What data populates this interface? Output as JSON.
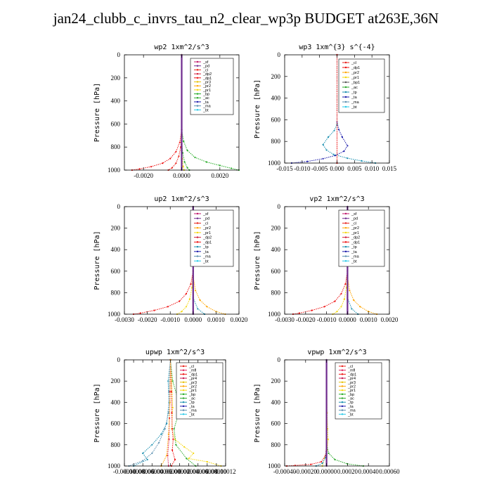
{
  "figure_title": "jan24_clubb_c_invrs_tau_n2_clear_wp3p  BUDGET at263E,36N",
  "colors": {
    "_sf": "#c0176c",
    "_pd": "#6e2a8e",
    "_cl": "#e8231c",
    "_dp2": "#d31f3a",
    "_dp1": "#ee1111",
    "_pr3": "#e6c000",
    "_pr2": "#ffa500",
    "_pr1": "#f5d60a",
    "_bp": "#22aa22",
    "_ac": "#2aa82a",
    "_tp": "#1a8fb0",
    "_ta": "#1a1aaa",
    "_ma": "#5a8fb0",
    "_bt": "#22c8e8",
    "_mfl": "#e0205a",
    "_pr4": "#c81450"
  },
  "chart_data": [
    {
      "type": "line",
      "title": "wp2   1xm^2/s^3",
      "ylabel": "Pressure  [hPa]",
      "xlim": [
        -0.003,
        0.003
      ],
      "ylim": [
        1000,
        0
      ],
      "xticks": [
        "-0.0020",
        "0.0000",
        "0.0020"
      ],
      "xtick_values": [
        -0.002,
        0,
        0.002
      ],
      "yticks": [
        "0",
        "200",
        "400",
        "600",
        "800",
        "1000"
      ],
      "legend": [
        "_sf",
        "_pd",
        "_cl",
        "_dp2",
        "_dp1",
        "_pr3",
        "_pr2",
        "_pr1",
        "_bp",
        "_ac",
        "_ta",
        "_ma",
        "_bt"
      ],
      "series": [
        {
          "name": "_bp",
          "x": [
            0,
            0,
            0.0001,
            0.0003,
            0.0007,
            0.0013,
            0.002,
            0.0026,
            0.003
          ],
          "y": [
            0,
            650,
            750,
            830,
            890,
            930,
            960,
            985,
            1000
          ]
        },
        {
          "name": "_dp1",
          "x": [
            0,
            0,
            -0.0001,
            -0.0003,
            -0.0006,
            -0.001,
            -0.0016,
            -0.0022,
            -0.0026
          ],
          "y": [
            0,
            650,
            760,
            840,
            900,
            940,
            970,
            990,
            1000
          ]
        },
        {
          "name": "_cl",
          "x": [
            0,
            0,
            -5e-05,
            -0.00015,
            -0.0003,
            -0.0005,
            -0.0007
          ],
          "y": [
            0,
            700,
            800,
            880,
            940,
            980,
            1000
          ]
        },
        {
          "name": "_ac",
          "x": [
            0,
            0,
            5e-05,
            0.00015,
            0.0003,
            0.0004
          ],
          "y": [
            0,
            750,
            850,
            930,
            980,
            1000
          ]
        },
        {
          "name": "_pr1",
          "x": [
            0,
            0,
            3e-05,
            8e-05,
            0.00012
          ],
          "y": [
            0,
            800,
            900,
            970,
            1000
          ]
        },
        {
          "name": "_pd",
          "x": [
            0,
            0
          ],
          "y": [
            0,
            1000
          ]
        }
      ]
    },
    {
      "type": "line",
      "title": "wp3   1xm^{3} s^{-4}",
      "ylabel": "Pressure  [hPa]",
      "xlim": [
        -0.015,
        0.015
      ],
      "ylim": [
        1000,
        0
      ],
      "xticks": [
        "-0.015",
        "-0.010",
        "-0.005",
        "0.000",
        "0.005",
        "0.010",
        "0.015"
      ],
      "xtick_values": [
        -0.015,
        -0.01,
        -0.005,
        0,
        0.005,
        0.01,
        0.015
      ],
      "yticks": [
        "0",
        "200",
        "400",
        "600",
        "800",
        "1000"
      ],
      "legend": [
        "_cl",
        "_dp1",
        "_pr2",
        "_pr1",
        "_bp1",
        "_ac",
        "_tp",
        "_ta",
        "_ma",
        "_bt"
      ],
      "series": [
        {
          "name": "_ta",
          "x": [
            0,
            0,
            0.0005,
            0.0015,
            0.003,
            0.002,
            -0.0005,
            -0.004,
            -0.0085,
            -0.013
          ],
          "y": [
            0,
            620,
            690,
            760,
            840,
            890,
            930,
            960,
            985,
            1000
          ]
        },
        {
          "name": "_tp",
          "x": [
            0,
            0,
            -0.0008,
            -0.0025,
            -0.004,
            -0.003,
            -0.001,
            0.003,
            0.007,
            0.011
          ],
          "y": [
            0,
            640,
            700,
            760,
            830,
            880,
            920,
            955,
            980,
            1000
          ]
        },
        {
          "name": "_cl",
          "x": [
            0,
            0
          ],
          "y": [
            0,
            1000
          ]
        },
        {
          "name": "_dp1",
          "x": [
            0,
            0
          ],
          "y": [
            0,
            1000
          ]
        }
      ]
    },
    {
      "type": "line",
      "title": "up2   1xm^2/s^3",
      "ylabel": "Pressure  [hPa]",
      "xlim": [
        -0.003,
        0.002
      ],
      "ylim": [
        1000,
        0
      ],
      "xticks": [
        "-0.0030",
        "-0.0020",
        "-0.0010",
        "0.0000",
        "0.0010",
        "0.0020"
      ],
      "xtick_values": [
        -0.003,
        -0.002,
        -0.001,
        0,
        0.001,
        0.002
      ],
      "yticks": [
        "0",
        "200",
        "400",
        "600",
        "800",
        "1000"
      ],
      "legend": [
        "_sf",
        "_pd",
        "_cl",
        "_pr2",
        "_pr1",
        "_dp2",
        "_dp1",
        "_tp",
        "_ta",
        "_ma",
        "_bt"
      ],
      "series": [
        {
          "name": "_dp1",
          "x": [
            0,
            0,
            -0.0001,
            -0.0003,
            -0.0006,
            -0.0011,
            -0.0017,
            -0.0023,
            -0.0026
          ],
          "y": [
            0,
            600,
            720,
            810,
            880,
            930,
            965,
            990,
            1000
          ]
        },
        {
          "name": "_pr1",
          "x": [
            0,
            0,
            -5e-05,
            -0.00015,
            -0.0003,
            -0.0005,
            -0.0007
          ],
          "y": [
            0,
            600,
            750,
            860,
            930,
            975,
            1000
          ]
        },
        {
          "name": "_pr2",
          "x": [
            0,
            0,
            0.0001,
            0.0003,
            0.0006,
            0.001,
            0.0014
          ],
          "y": [
            0,
            650,
            780,
            870,
            930,
            975,
            1000
          ]
        },
        {
          "name": "_tp",
          "x": [
            0,
            0,
            0.0002,
            0.0005
          ],
          "y": [
            0,
            850,
            950,
            1000
          ]
        },
        {
          "name": "_pd",
          "x": [
            0,
            0
          ],
          "y": [
            0,
            1000
          ]
        }
      ]
    },
    {
      "type": "line",
      "title": "vp2   1xm^2/s^3",
      "ylabel": "Pressure  [hPa]",
      "xlim": [
        -0.003,
        0.002
      ],
      "ylim": [
        1000,
        0
      ],
      "xticks": [
        "-0.0030",
        "-0.0020",
        "-0.0010",
        "0.0000",
        "0.0010",
        "0.0020"
      ],
      "xtick_values": [
        -0.003,
        -0.002,
        -0.001,
        0,
        0.001,
        0.002
      ],
      "yticks": [
        "0",
        "200",
        "400",
        "600",
        "800",
        "1000"
      ],
      "legend": [
        "_sf",
        "_pd",
        "_cl",
        "_pr2",
        "_pr1",
        "_dp2",
        "_dp1",
        "_tp",
        "_ta",
        "_ma",
        "_bt"
      ],
      "series": [
        {
          "name": "_dp1",
          "x": [
            0,
            0,
            -0.0001,
            -0.0003,
            -0.0006,
            -0.0011,
            -0.0017,
            -0.0023,
            -0.0026
          ],
          "y": [
            0,
            600,
            720,
            810,
            880,
            930,
            965,
            990,
            1000
          ]
        },
        {
          "name": "_pr1",
          "x": [
            0,
            0,
            -5e-05,
            -0.00015,
            -0.0003,
            -0.0005,
            -0.0007
          ],
          "y": [
            0,
            600,
            750,
            860,
            930,
            975,
            1000
          ]
        },
        {
          "name": "_pr2",
          "x": [
            0,
            0,
            0.0001,
            0.0003,
            0.0006,
            0.001,
            0.0014
          ],
          "y": [
            0,
            650,
            780,
            870,
            930,
            975,
            1000
          ]
        },
        {
          "name": "_tp",
          "x": [
            0,
            0,
            0.0002,
            0.0005
          ],
          "y": [
            0,
            850,
            950,
            1000
          ]
        },
        {
          "name": "_pd",
          "x": [
            0,
            0
          ],
          "y": [
            0,
            1000
          ]
        }
      ]
    },
    {
      "type": "line",
      "title": "upwp   1xm^2/s^3",
      "ylabel": "Pressure  [hPa]",
      "xlim": [
        -0.0001,
        0.00012
      ],
      "ylim": [
        1000,
        0
      ],
      "xticks": [
        "-0.00010",
        "-0.00008",
        "-0.00006",
        "-0.00004",
        "-0.00002",
        "0.00000",
        "0.00002",
        "0.00004",
        "0.00006",
        "0.00008",
        "0.00010",
        "0.00012"
      ],
      "xtick_values": [
        -0.0001,
        -8e-05,
        -6e-05,
        -4e-05,
        -2e-05,
        0,
        2e-05,
        4e-05,
        6e-05,
        8e-05,
        0.0001,
        0.00012
      ],
      "yticks": [
        "0",
        "200",
        "400",
        "600",
        "800",
        "1000"
      ],
      "legend": [
        "_cl",
        "_mfl",
        "_dp1",
        "_pr4",
        "_pr3",
        "_pr2",
        "_pr1",
        "_bp",
        "_ac",
        "_tp",
        "_ta",
        "_ma",
        "_bt"
      ],
      "series": [
        {
          "name": "_pr1",
          "x": [
            0,
            3e-06,
            5e-06,
            3e-06,
            1e-05,
            3e-05,
            5e-05,
            4e-05,
            8e-05,
            0.00011
          ],
          "y": [
            0,
            200,
            450,
            650,
            750,
            820,
            880,
            930,
            960,
            1000
          ]
        },
        {
          "name": "_ac",
          "x": [
            0,
            5e-06,
            1.5e-05,
            1.8e-05,
            8e-06,
            1.2e-05,
            3.5e-05,
            5.5e-05
          ],
          "y": [
            0,
            200,
            350,
            500,
            650,
            800,
            930,
            1000
          ]
        },
        {
          "name": "_tp",
          "x": [
            0,
            -5e-06,
            -3e-06,
            -8e-06,
            -2e-05,
            -4e-05,
            -6e-05,
            -5e-05,
            -8e-05
          ],
          "y": [
            0,
            200,
            400,
            600,
            700,
            800,
            880,
            940,
            1000
          ]
        },
        {
          "name": "_ma",
          "x": [
            0,
            -3e-06,
            -4e-06,
            -1.2e-05,
            -2.5e-05,
            -4e-05,
            -6e-05,
            -9e-05
          ],
          "y": [
            0,
            300,
            500,
            650,
            780,
            880,
            950,
            1000
          ]
        },
        {
          "name": "_dp1",
          "x": [
            0,
            2e-06,
            3e-06,
            4e-06,
            6e-06,
            4e-06,
            1e-05,
            2e-06
          ],
          "y": [
            0,
            300,
            500,
            650,
            750,
            850,
            940,
            1000
          ]
        },
        {
          "name": "_mfl",
          "x": [
            0,
            -1e-06,
            -2e-06,
            -3e-06,
            -6e-06,
            -4e-06
          ],
          "y": [
            0,
            300,
            550,
            750,
            900,
            1000
          ]
        },
        {
          "name": "_pr2",
          "x": [
            0,
            -1e-06,
            -4e-06,
            -8e-06,
            -2e-05
          ],
          "y": [
            0,
            400,
            700,
            900,
            1000
          ]
        }
      ]
    },
    {
      "type": "line",
      "title": "vpwp   1xm^2/s^3",
      "ylabel": "Pressure  [hPa]",
      "xlim": [
        -0.0004,
        0.0006
      ],
      "ylim": [
        1000,
        0
      ],
      "xticks": [
        "-0.00040",
        "-0.00020",
        "0.00000",
        "0.00020",
        "0.00040",
        "0.00060"
      ],
      "xtick_values": [
        -0.0004,
        -0.0002,
        0,
        0.0002,
        0.0004,
        0.0006
      ],
      "yticks": [
        "0",
        "200",
        "400",
        "600",
        "800",
        "1000"
      ],
      "legend": [
        "_cl",
        "_mfl",
        "_dp1",
        "_pr4",
        "_pr3",
        "_pr2",
        "_pr1",
        "_bp",
        "_ac",
        "_tp",
        "_ta",
        "_ma",
        "_bt"
      ],
      "series": [
        {
          "name": "_ac",
          "x": [
            0,
            0,
            2e-05,
            8e-05,
            0.0002,
            0.00035
          ],
          "y": [
            0,
            780,
            880,
            940,
            980,
            1000
          ]
        },
        {
          "name": "_pr1",
          "x": [
            0,
            5e-06,
            1e-05,
            1.5e-05,
            5e-06,
            -2e-05,
            -4e-05
          ],
          "y": [
            0,
            500,
            650,
            750,
            850,
            930,
            1000
          ]
        },
        {
          "name": "_dp1",
          "x": [
            0,
            0,
            -1e-05,
            -5e-05,
            -0.00015,
            -0.0003,
            -0.00038
          ],
          "y": [
            0,
            800,
            900,
            960,
            985,
            995,
            1000
          ]
        },
        {
          "name": "_tp",
          "x": [
            0,
            0,
            -1e-05,
            -4e-05,
            -0.0001
          ],
          "y": [
            0,
            820,
            920,
            975,
            1000
          ]
        },
        {
          "name": "_pd",
          "x": [
            0,
            0
          ],
          "y": [
            0,
            1000
          ]
        }
      ]
    }
  ]
}
